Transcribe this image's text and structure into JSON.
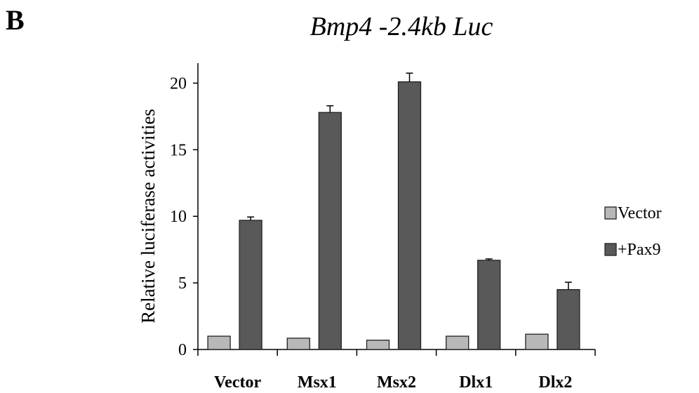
{
  "panel_letter": "B",
  "chart_data": {
    "type": "bar",
    "title": "Bmp4 -2.4kb Luc",
    "xlabel": "",
    "ylabel": "Relative luciferase activities",
    "categories": [
      "Vector",
      "Msx1",
      "Msx2",
      "Dlx1",
      "Dlx2"
    ],
    "yticks": [
      0,
      5,
      10,
      15,
      20
    ],
    "ylim": [
      0,
      21.5
    ],
    "grid": false,
    "legend_position": "right",
    "series": [
      {
        "name": "Vector",
        "color": "#b8b8b8",
        "values": [
          1.0,
          0.85,
          0.7,
          1.0,
          1.15
        ],
        "errors": [
          0.0,
          0.0,
          0.0,
          0.0,
          0.0
        ]
      },
      {
        "name": "+Pax9",
        "color": "#595959",
        "values": [
          9.7,
          17.8,
          20.1,
          6.7,
          4.5
        ],
        "errors": [
          0.25,
          0.5,
          0.65,
          0.1,
          0.55
        ]
      }
    ]
  }
}
